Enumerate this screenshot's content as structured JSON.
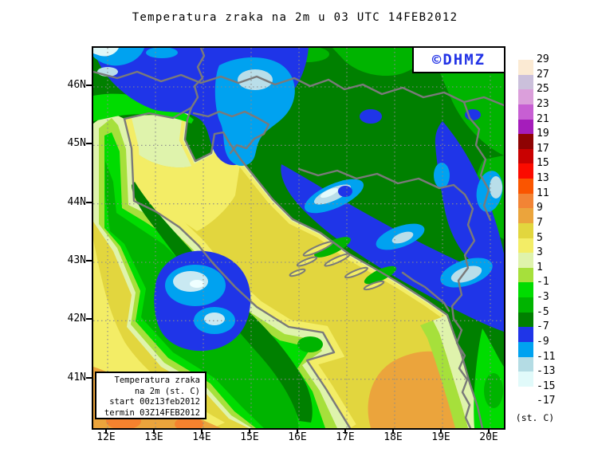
{
  "title": "Temperatura zraka na 2m u 03 UTC 14FEB2012",
  "logo": {
    "text": "©DHMZ",
    "color": "#2233E6"
  },
  "info_box": {
    "lines": [
      "Temperatura zraka",
      "na 2m (st. C)",
      "start 00z13feb2012",
      "termin 03Z14FEB2012"
    ]
  },
  "axes": {
    "lat_labels": [
      "46N",
      "45N",
      "44N",
      "43N",
      "42N",
      "41N"
    ],
    "lon_labels": [
      "12E",
      "13E",
      "14E",
      "15E",
      "16E",
      "17E",
      "18E",
      "19E",
      "20E"
    ]
  },
  "colorbar": {
    "unit_label": "(st. C)",
    "levels": [
      29,
      27,
      25,
      23,
      21,
      19,
      17,
      15,
      13,
      11,
      9,
      7,
      5,
      3,
      1,
      -1,
      -3,
      -5,
      -7,
      -9,
      -11,
      -13,
      -15,
      -17
    ],
    "colors": [
      "#FBEAD3",
      "#CBC0DB",
      "#DB9FDB",
      "#C75FD3",
      "#A51DBB",
      "#8E0303",
      "#C90101",
      "#FB0B00",
      "#FA5500",
      "#F28435",
      "#EBA43C",
      "#E2D63E",
      "#F3ED66",
      "#DFF3AC",
      "#A6E03B",
      "#00DC00",
      "#00B400",
      "#008000",
      "#1F35E8",
      "#00A2F0",
      "#B4DCE4",
      "#E1FAFA",
      "#FFFFFF"
    ]
  },
  "map": {
    "border_color": "#7A7A7A",
    "grid_color": "#8A8A8A"
  }
}
